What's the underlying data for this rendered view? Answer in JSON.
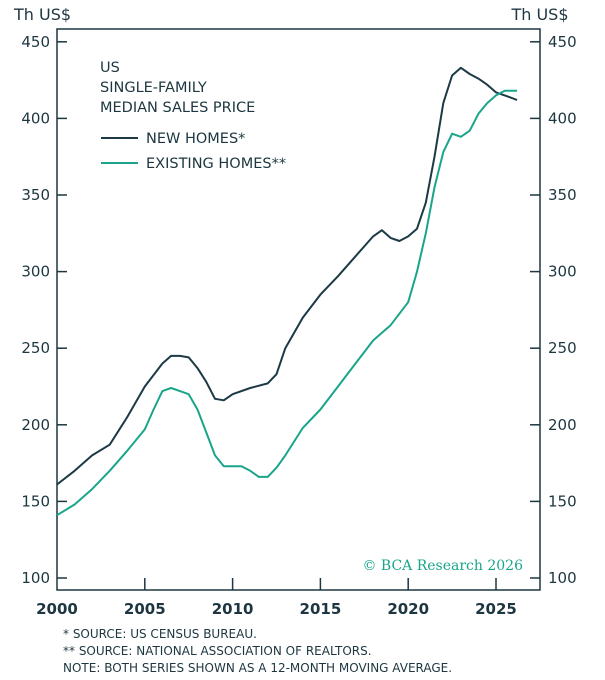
{
  "chart_data": {
    "type": "line",
    "title": [
      "US",
      "SINGLE-FAMILY",
      "MEDIAN SALES PRICE"
    ],
    "ylabel_left": "Th US$",
    "ylabel_right": "Th US$",
    "ylim": [
      100,
      450
    ],
    "yticks": [
      100,
      150,
      200,
      250,
      300,
      350,
      400,
      450
    ],
    "xlim": [
      2000,
      2027.2
    ],
    "xticks": [
      2000,
      2005,
      2010,
      2015,
      2020,
      2025
    ],
    "legend_position": "top-left",
    "series": [
      {
        "name": "NEW HOMES*",
        "color": "#1b3a45",
        "x": [
          2000,
          2001,
          2002,
          2003,
          2004,
          2005,
          2006,
          2006.5,
          2007,
          2007.5,
          2008,
          2008.5,
          2009,
          2009.5,
          2010,
          2011,
          2012,
          2012.5,
          2013,
          2014,
          2015,
          2016,
          2017,
          2018,
          2018.5,
          2019,
          2019.5,
          2020,
          2020.5,
          2021,
          2021.5,
          2022,
          2022.5,
          2023,
          2023.5,
          2024,
          2024.5,
          2025,
          2025.5,
          2026.2
        ],
        "y": [
          161,
          170,
          180,
          187,
          205,
          225,
          240,
          245,
          245,
          244,
          237,
          228,
          217,
          216,
          220,
          224,
          227,
          233,
          250,
          270,
          285,
          297,
          310,
          323,
          327,
          322,
          320,
          323,
          328,
          345,
          375,
          410,
          428,
          433,
          429,
          426,
          422,
          417,
          415,
          412
        ]
      },
      {
        "name": "EXISTING HOMES**",
        "color": "#1aa58a",
        "x": [
          2000,
          2001,
          2002,
          2003,
          2004,
          2005,
          2005.5,
          2006,
          2006.5,
          2007,
          2007.5,
          2008,
          2008.5,
          2009,
          2009.5,
          2010,
          2010.5,
          2011,
          2011.5,
          2012,
          2012.5,
          2013,
          2014,
          2015,
          2016,
          2017,
          2018,
          2019,
          2020,
          2020.5,
          2021,
          2021.5,
          2022,
          2022.5,
          2023,
          2023.5,
          2024,
          2024.5,
          2025,
          2025.5,
          2026.2
        ],
        "y": [
          141,
          148,
          158,
          170,
          183,
          197,
          210,
          222,
          224,
          222,
          220,
          210,
          195,
          180,
          173,
          173,
          173,
          170,
          166,
          166,
          172,
          180,
          198,
          210,
          225,
          240,
          255,
          265,
          280,
          300,
          325,
          355,
          378,
          390,
          388,
          392,
          403,
          410,
          415,
          418,
          418
        ]
      }
    ]
  },
  "copyright": "© BCA Research 2026",
  "notes": [
    "*  SOURCE: US CENSUS BUREAU.",
    "** SOURCE: NATIONAL ASSOCIATION OF REALTORS.",
    "NOTE: BOTH SERIES SHOWN AS A 12-MONTH MOVING AVERAGE."
  ]
}
